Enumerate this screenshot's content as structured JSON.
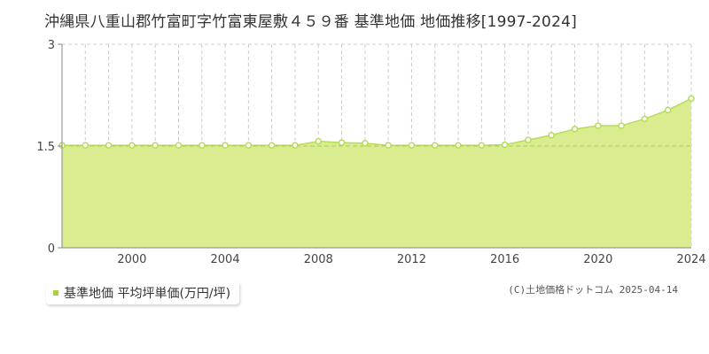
{
  "title": "沖縄県八重山郡竹富町字竹富東屋敷４５９番 基準地価 地価推移[1997-2024]",
  "legend": {
    "label": "基準地価 平均坪単価(万円/坪)",
    "color": "#a8d040"
  },
  "credit": "(C)土地価格ドットコム 2025-04-14",
  "colors": {
    "area_fill": "#d9ec8f",
    "line": "#b5dc5a",
    "marker_stroke": "#b5dc5a",
    "marker_fill": "#ffffff",
    "grid": "#cccccc",
    "reference_line": "#a0c050"
  },
  "chart_data": {
    "type": "area",
    "x": [
      1997,
      1998,
      1999,
      2000,
      2001,
      2002,
      2003,
      2004,
      2005,
      2006,
      2007,
      2008,
      2009,
      2010,
      2011,
      2012,
      2013,
      2014,
      2015,
      2016,
      2017,
      2018,
      2019,
      2020,
      2021,
      2022,
      2023,
      2024
    ],
    "series": [
      {
        "values": [
          1.51,
          1.51,
          1.51,
          1.51,
          1.51,
          1.51,
          1.51,
          1.51,
          1.51,
          1.51,
          1.51,
          1.57,
          1.55,
          1.54,
          1.51,
          1.51,
          1.51,
          1.51,
          1.51,
          1.52,
          1.59,
          1.66,
          1.75,
          1.8,
          1.8,
          1.9,
          2.03,
          2.2
        ]
      }
    ],
    "xlim": [
      1997,
      2024
    ],
    "ylim": [
      0,
      3
    ],
    "y_ticks": [
      "0",
      "1.5",
      "3"
    ],
    "x_ticks": [
      "2000",
      "2004",
      "2008",
      "2012",
      "2016",
      "2020",
      "2024"
    ],
    "reference_line": 1.5,
    "grid": true
  }
}
